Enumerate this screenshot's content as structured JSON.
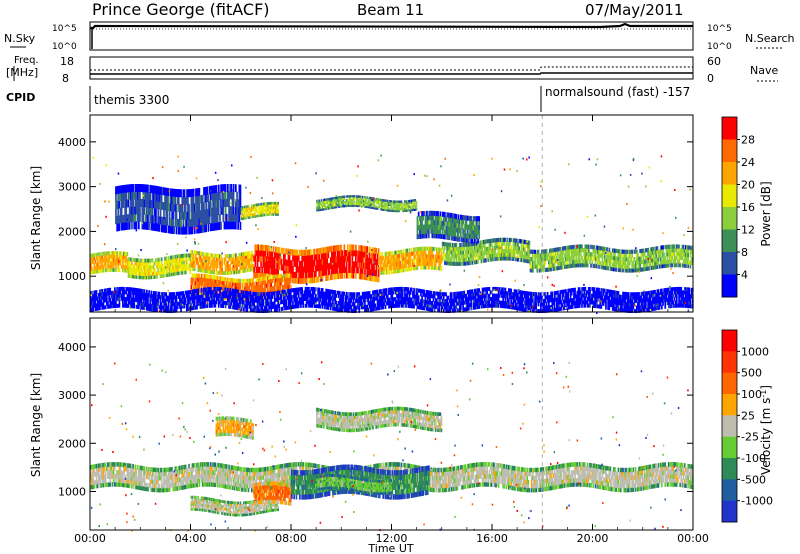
{
  "header": {
    "station": "Prince George (fitACF)",
    "beam": "Beam 11",
    "date": "07/May/2011"
  },
  "nsky": {
    "label": "N.Sky",
    "right_label": "N.Search",
    "left_ticks": [
      "10^5",
      "10^0"
    ],
    "right_ticks": [
      "10^5",
      "10^0"
    ]
  },
  "freq": {
    "label_top": "Freq.",
    "label_bottom": "[MHz]",
    "right_label": "Nave",
    "left_ticks": [
      "18",
      "8"
    ],
    "right_ticks": [
      "60",
      "0"
    ]
  },
  "cpid": {
    "label": "CPID",
    "segments": [
      {
        "start_hour": 0,
        "text": "themis 3300"
      },
      {
        "start_hour": 18,
        "text": "normalsound (fast) -157"
      }
    ]
  },
  "chart_data": [
    {
      "type": "heatmap",
      "title": "",
      "ylabel": "Slant Range [km]",
      "xlim": [
        0,
        24
      ],
      "ylim": [
        200,
        4600
      ],
      "yticks": [
        "1000",
        "2000",
        "3000",
        "4000"
      ],
      "colorbar": {
        "label": "Power [dB]",
        "ticks": [
          "4",
          "8",
          "12",
          "16",
          "20",
          "24",
          "28"
        ],
        "colors": [
          "#0000ff",
          "#2c4fa4",
          "#3b8f57",
          "#8ccf3c",
          "#e8e800",
          "#ffa500",
          "#ff6a00",
          "#ff0000"
        ]
      },
      "bands": [
        {
          "t0": 0.0,
          "t1": 1.5,
          "r0": 1050,
          "r1": 1500,
          "level": 5
        },
        {
          "t0": 1.5,
          "t1": 4.0,
          "r0": 1000,
          "r1": 1450,
          "level": 4
        },
        {
          "t0": 4.0,
          "t1": 6.5,
          "r0": 1100,
          "r1": 1550,
          "level": 5
        },
        {
          "t0": 6.5,
          "t1": 11.5,
          "r0": 900,
          "r1": 1650,
          "level": 7
        },
        {
          "t0": 11.5,
          "t1": 14.0,
          "r0": 1100,
          "r1": 1600,
          "level": 5
        },
        {
          "t0": 14.0,
          "t1": 17.5,
          "r0": 1300,
          "r1": 1800,
          "level": 3
        },
        {
          "t0": 17.5,
          "t1": 24.0,
          "r0": 1150,
          "r1": 1650,
          "level": 3
        },
        {
          "t0": 4.0,
          "t1": 8.0,
          "r0": 500,
          "r1": 1000,
          "level": 6
        },
        {
          "t0": 6.0,
          "t1": 7.5,
          "r0": 2300,
          "r1": 2600,
          "level": 4
        },
        {
          "t0": 9.0,
          "t1": 13.0,
          "r0": 2500,
          "r1": 2750,
          "level": 3
        },
        {
          "t0": 13.0,
          "t1": 15.5,
          "r0": 1800,
          "r1": 2400,
          "level": 2
        },
        {
          "t0": 1.0,
          "t1": 6.0,
          "r0": 2000,
          "r1": 3000,
          "level": 1
        },
        {
          "t0": 0.0,
          "t1": 24.0,
          "r0": 250,
          "r1": 700,
          "level": 0
        }
      ]
    },
    {
      "type": "heatmap",
      "title": "",
      "ylabel": "Slant Range [km]",
      "xlabel": "Time UT",
      "xlim": [
        0,
        24
      ],
      "ylim": [
        200,
        4600
      ],
      "yticks": [
        "1000",
        "2000",
        "3000",
        "4000"
      ],
      "xticks": [
        "00:00",
        "04:00",
        "08:00",
        "12:00",
        "16:00",
        "20:00",
        "00:00"
      ],
      "colorbar": {
        "label": "Velocity [m s^-1]",
        "ticks": [
          "1000",
          "500",
          "100",
          "25",
          "-25",
          "-100",
          "-500",
          "-1000"
        ],
        "colors": [
          "#2233cc",
          "#1f5fa0",
          "#2e8b57",
          "#66cc33",
          "#bdbdb0",
          "#ffa500",
          "#ff6600",
          "#ff3300",
          "#ff0000"
        ]
      },
      "bands": [
        {
          "t0": 0.0,
          "t1": 24.0,
          "r0": 1050,
          "r1": 1550,
          "level": 4
        },
        {
          "t0": 4.0,
          "t1": 7.5,
          "r0": 550,
          "r1": 850,
          "level": 4
        },
        {
          "t0": 6.5,
          "t1": 8.0,
          "r0": 700,
          "r1": 1150,
          "level": 6
        },
        {
          "t0": 8.0,
          "t1": 13.5,
          "r0": 900,
          "r1": 1500,
          "level": 2
        },
        {
          "t0": 9.0,
          "t1": 12.0,
          "r0": 1000,
          "r1": 1300,
          "level": 3
        },
        {
          "t0": 5.0,
          "t1": 6.5,
          "r0": 2100,
          "r1": 2500,
          "level": 5
        },
        {
          "t0": 9.0,
          "t1": 14.0,
          "r0": 2300,
          "r1": 2700,
          "level": 4
        }
      ]
    }
  ]
}
